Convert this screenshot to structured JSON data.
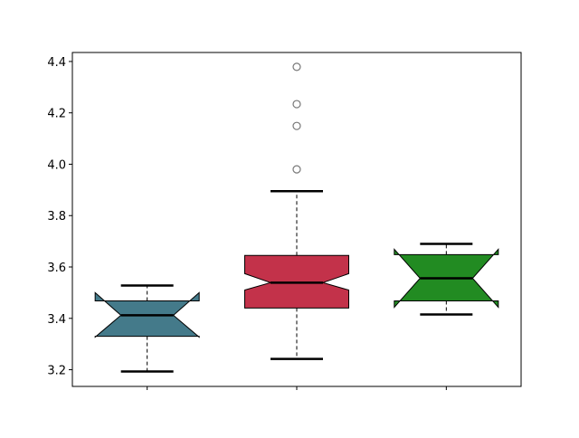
{
  "chart_data": {
    "type": "boxplot",
    "notched": true,
    "categories": [
      "",
      "",
      ""
    ],
    "ylim": [
      3.135,
      4.435
    ],
    "yticks": [
      "3.2",
      "3.4",
      "3.6",
      "3.8",
      "4.0",
      "4.2",
      "4.4"
    ],
    "grid": false,
    "boxes": [
      {
        "color": "#447a8a",
        "whisker_low": 3.193,
        "q1": 3.33,
        "median": 3.412,
        "q3": 3.468,
        "whisker_high": 3.528,
        "notch_low": 3.327,
        "notch_high": 3.5,
        "fliers": []
      },
      {
        "color": "#c3324a",
        "whisker_low": 3.242,
        "q1": 3.44,
        "median": 3.539,
        "q3": 3.645,
        "whisker_high": 3.895,
        "notch_low": 3.51,
        "notch_high": 3.574,
        "fliers": [
          3.98,
          4.149,
          4.234,
          4.379
        ]
      },
      {
        "color": "#228b22",
        "whisker_low": 3.415,
        "q1": 3.468,
        "median": 3.556,
        "q3": 3.648,
        "whisker_high": 3.69,
        "notch_low": 3.443,
        "notch_high": 3.669,
        "fliers": []
      }
    ]
  }
}
